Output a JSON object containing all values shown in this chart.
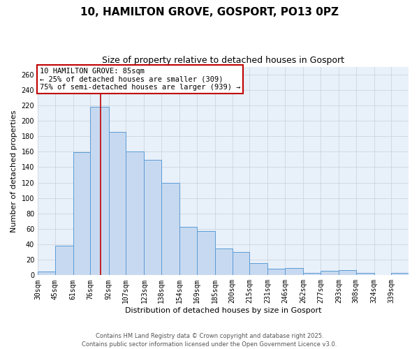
{
  "title": "10, HAMILTON GROVE, GOSPORT, PO13 0PZ",
  "subtitle": "Size of property relative to detached houses in Gosport",
  "xlabel": "Distribution of detached houses by size in Gosport",
  "ylabel": "Number of detached properties",
  "categories": [
    "30sqm",
    "45sqm",
    "61sqm",
    "76sqm",
    "92sqm",
    "107sqm",
    "123sqm",
    "138sqm",
    "154sqm",
    "169sqm",
    "185sqm",
    "200sqm",
    "215sqm",
    "231sqm",
    "246sqm",
    "262sqm",
    "277sqm",
    "293sqm",
    "308sqm",
    "324sqm",
    "339sqm"
  ],
  "values": [
    5,
    38,
    159,
    218,
    186,
    160,
    149,
    120,
    63,
    57,
    35,
    30,
    16,
    8,
    9,
    3,
    6,
    7,
    3,
    0,
    3
  ],
  "bar_color": "#c7d9f0",
  "bar_edge_color": "#5b9bd5",
  "background_color": "#ffffff",
  "plot_bg_color": "#e8f0fa",
  "grid_color": "#c8d0d8",
  "ylim": [
    0,
    270
  ],
  "yticks": [
    0,
    20,
    40,
    60,
    80,
    100,
    120,
    140,
    160,
    180,
    200,
    220,
    240,
    260
  ],
  "annotation_text": "10 HAMILTON GROVE: 85sqm\n← 25% of detached houses are smaller (309)\n75% of semi-detached houses are larger (939) →",
  "annotation_box_color": "#ffffff",
  "annotation_box_edge_color": "#c00000",
  "red_line_x": 85,
  "bin_edges": [
    30,
    45,
    61,
    76,
    92,
    107,
    123,
    138,
    154,
    169,
    185,
    200,
    215,
    231,
    246,
    262,
    277,
    293,
    308,
    324,
    339,
    354
  ],
  "footer_text": "Contains HM Land Registry data © Crown copyright and database right 2025.\nContains public sector information licensed under the Open Government Licence v3.0.",
  "title_fontsize": 11,
  "subtitle_fontsize": 9,
  "axis_label_fontsize": 8,
  "tick_fontsize": 7,
  "annotation_fontsize": 7.5,
  "footer_fontsize": 6
}
